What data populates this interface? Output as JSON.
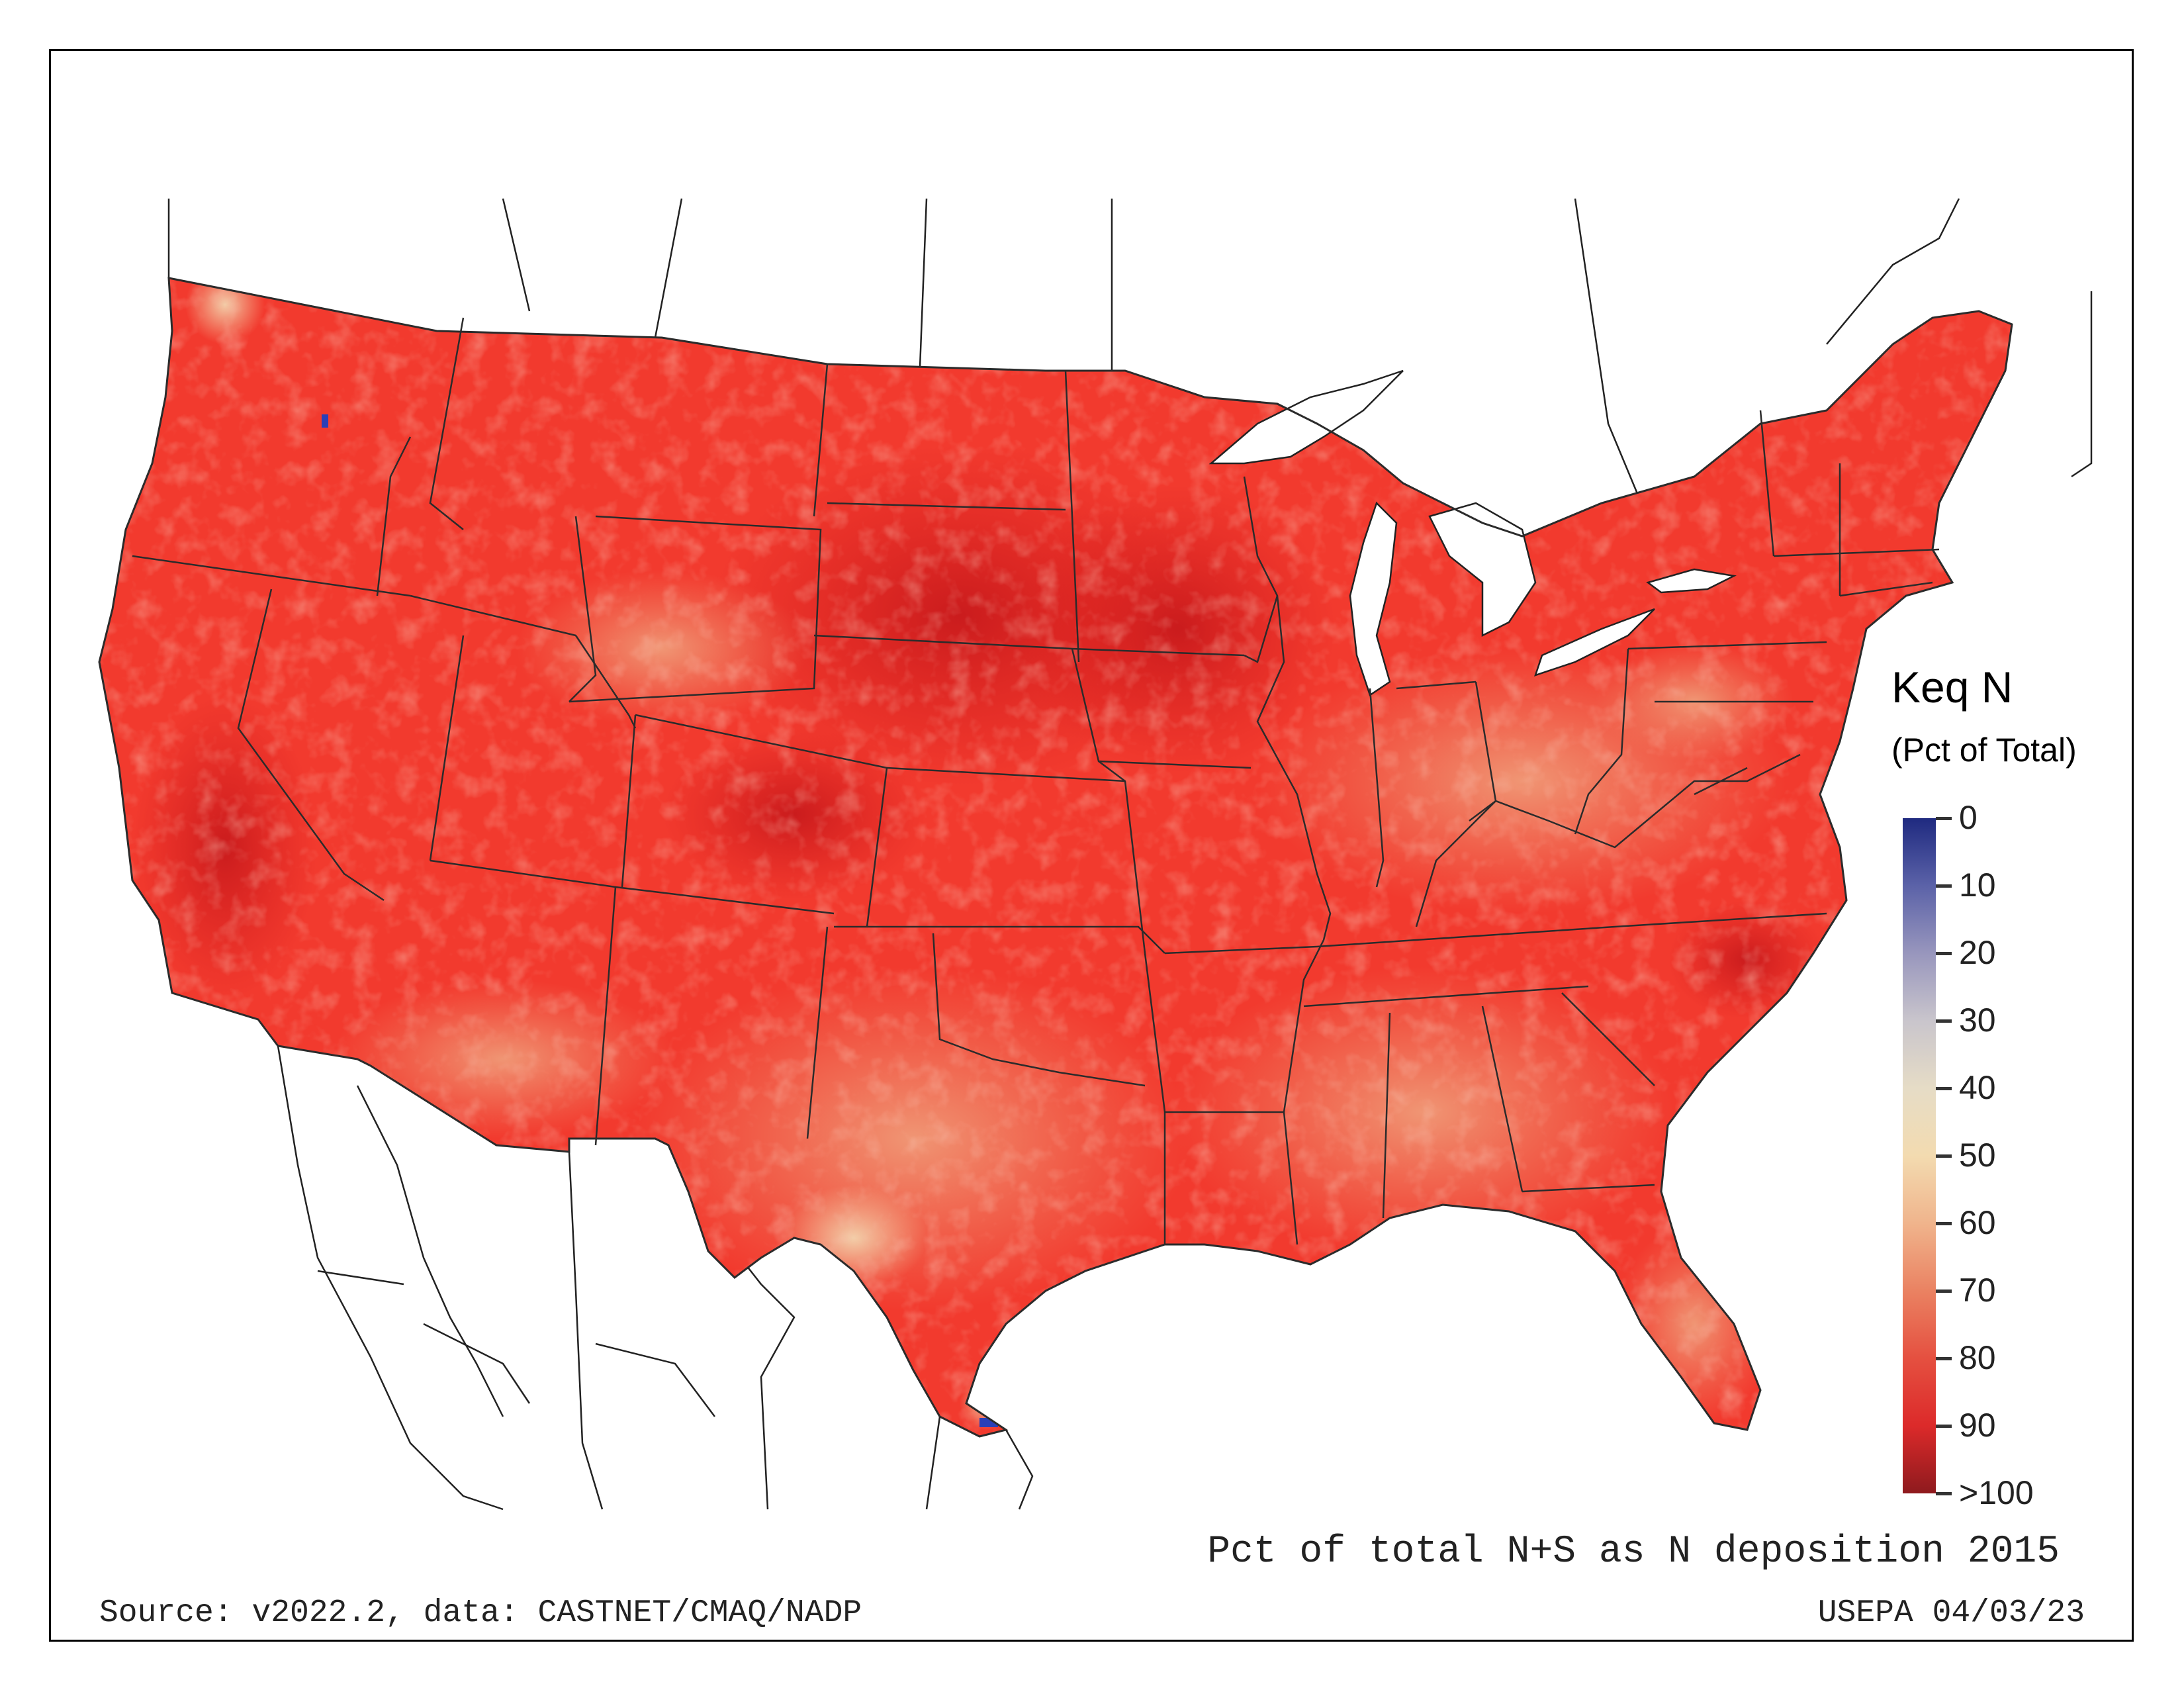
{
  "legend": {
    "title": "Keq N",
    "subtitle": "(Pct of Total)",
    "tick_labels": [
      "0",
      "10",
      "20",
      "30",
      "40",
      "50",
      "60",
      "70",
      "80",
      "90",
      ">100"
    ],
    "color_stops": [
      "#1f2a80",
      "#5b62a8",
      "#9896bd",
      "#c9c5cc",
      "#e6dcc6",
      "#f3dbb0",
      "#f0b48c",
      "#ea8262",
      "#e55040",
      "#dc2a2a",
      "#8e1a1e"
    ]
  },
  "captions": {
    "main": "Pct of total N+S as N deposition 2015",
    "source": "Source: v2022.2, data: CASTNET/CMAQ/NADP",
    "agency": "USEPA 04/03/23"
  },
  "map": {
    "fill_colors": {
      "base": "#f23a2e",
      "dark": "#d81e1e",
      "light": "#ef8a6a",
      "pale": "#f2c8a0",
      "blue": "#2a3fb8"
    }
  }
}
